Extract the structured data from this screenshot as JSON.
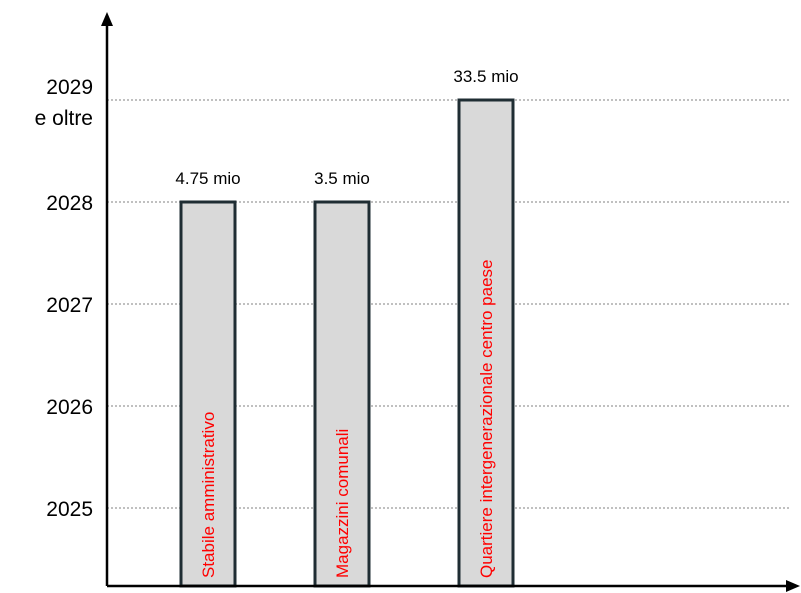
{
  "chart_data": {
    "type": "bar",
    "title": "",
    "xlabel": "",
    "ylabel": "",
    "categories": [
      "Stabile amministrativo",
      "Magazzini comunali",
      "Quartiere intergenerazionale centro paese"
    ],
    "values": [
      2028,
      2028,
      2029
    ],
    "value_labels": [
      "4.75 mio",
      "3.5 mio",
      "33.5 mio"
    ],
    "y_ticks": [
      {
        "value": 2025,
        "label": "2025"
      },
      {
        "value": 2026,
        "label": "2026"
      },
      {
        "value": 2027,
        "label": "2027"
      },
      {
        "value": 2028,
        "label": "2028"
      },
      {
        "value": 2029,
        "label": "2029",
        "label2": "e oltre"
      }
    ],
    "grid": "horizontal-dotted",
    "colors": {
      "bar_fill": "#d9d9d9",
      "bar_stroke": "#1f2d33",
      "category_text": "#ff0000",
      "axis": "#000000",
      "grid": "#808080"
    }
  }
}
